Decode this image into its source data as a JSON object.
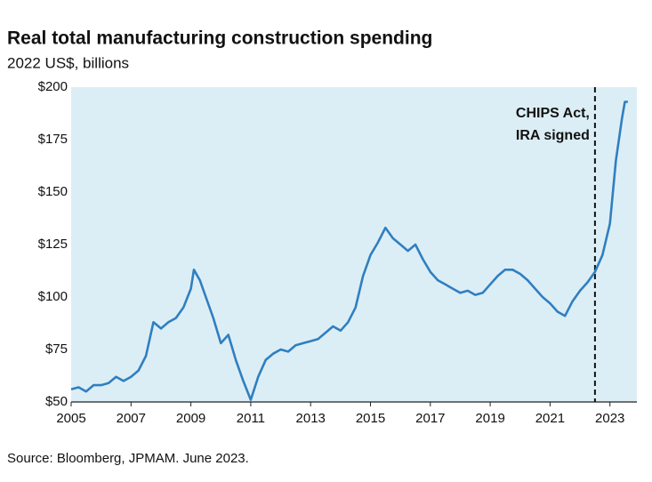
{
  "chart_data": {
    "type": "line",
    "title": "Real total manufacturing construction spending",
    "subtitle": "2022 US$, billions",
    "source": "Source: Bloomberg, JPMAM. June 2023.",
    "color": "#2f7fc1",
    "background": "#dceef5",
    "grid": false,
    "x": [
      2005.0,
      2005.25,
      2005.5,
      2005.75,
      2006.0,
      2006.25,
      2006.5,
      2006.75,
      2007.0,
      2007.25,
      2007.5,
      2007.75,
      2008.0,
      2008.25,
      2008.5,
      2008.75,
      2009.0,
      2009.1,
      2009.3,
      2009.5,
      2009.75,
      2010.0,
      2010.25,
      2010.5,
      2010.75,
      2011.0,
      2011.25,
      2011.5,
      2011.75,
      2012.0,
      2012.25,
      2012.5,
      2012.75,
      2013.0,
      2013.25,
      2013.5,
      2013.75,
      2014.0,
      2014.25,
      2014.5,
      2014.75,
      2015.0,
      2015.25,
      2015.5,
      2015.75,
      2016.0,
      2016.25,
      2016.5,
      2016.75,
      2017.0,
      2017.25,
      2017.5,
      2017.75,
      2018.0,
      2018.25,
      2018.5,
      2018.75,
      2019.0,
      2019.25,
      2019.5,
      2019.75,
      2020.0,
      2020.25,
      2020.5,
      2020.75,
      2021.0,
      2021.25,
      2021.5,
      2021.75,
      2022.0,
      2022.25,
      2022.5,
      2022.75,
      2023.0,
      2023.2,
      2023.4,
      2023.5,
      2023.6
    ],
    "values": [
      56,
      57,
      55,
      58,
      58,
      59,
      62,
      60,
      62,
      65,
      72,
      88,
      85,
      88,
      90,
      95,
      104,
      113,
      108,
      100,
      90,
      78,
      82,
      70,
      60,
      51,
      62,
      70,
      73,
      75,
      74,
      77,
      78,
      79,
      80,
      83,
      86,
      84,
      88,
      95,
      110,
      120,
      126,
      133,
      128,
      125,
      122,
      125,
      118,
      112,
      108,
      106,
      104,
      102,
      103,
      101,
      102,
      106,
      110,
      113,
      113,
      111,
      108,
      104,
      100,
      97,
      93,
      91,
      98,
      103,
      107,
      112,
      120,
      135,
      165,
      185,
      193,
      193
    ],
    "xlim": [
      2005,
      2023.9
    ],
    "ylim": [
      50,
      200
    ],
    "xticks": [
      2005,
      2007,
      2009,
      2011,
      2013,
      2015,
      2017,
      2019,
      2021,
      2023
    ],
    "yticks": [
      {
        "value": 50,
        "label": "$50"
      },
      {
        "value": 75,
        "label": "$75"
      },
      {
        "value": 100,
        "label": "$100"
      },
      {
        "value": 125,
        "label": "$125"
      },
      {
        "value": 150,
        "label": "$150"
      },
      {
        "value": 175,
        "label": "$175"
      },
      {
        "value": 200,
        "label": "$200"
      }
    ],
    "annotation": {
      "lines": [
        "CHIPS Act,",
        "IRA signed"
      ],
      "x": 2022.5
    }
  }
}
